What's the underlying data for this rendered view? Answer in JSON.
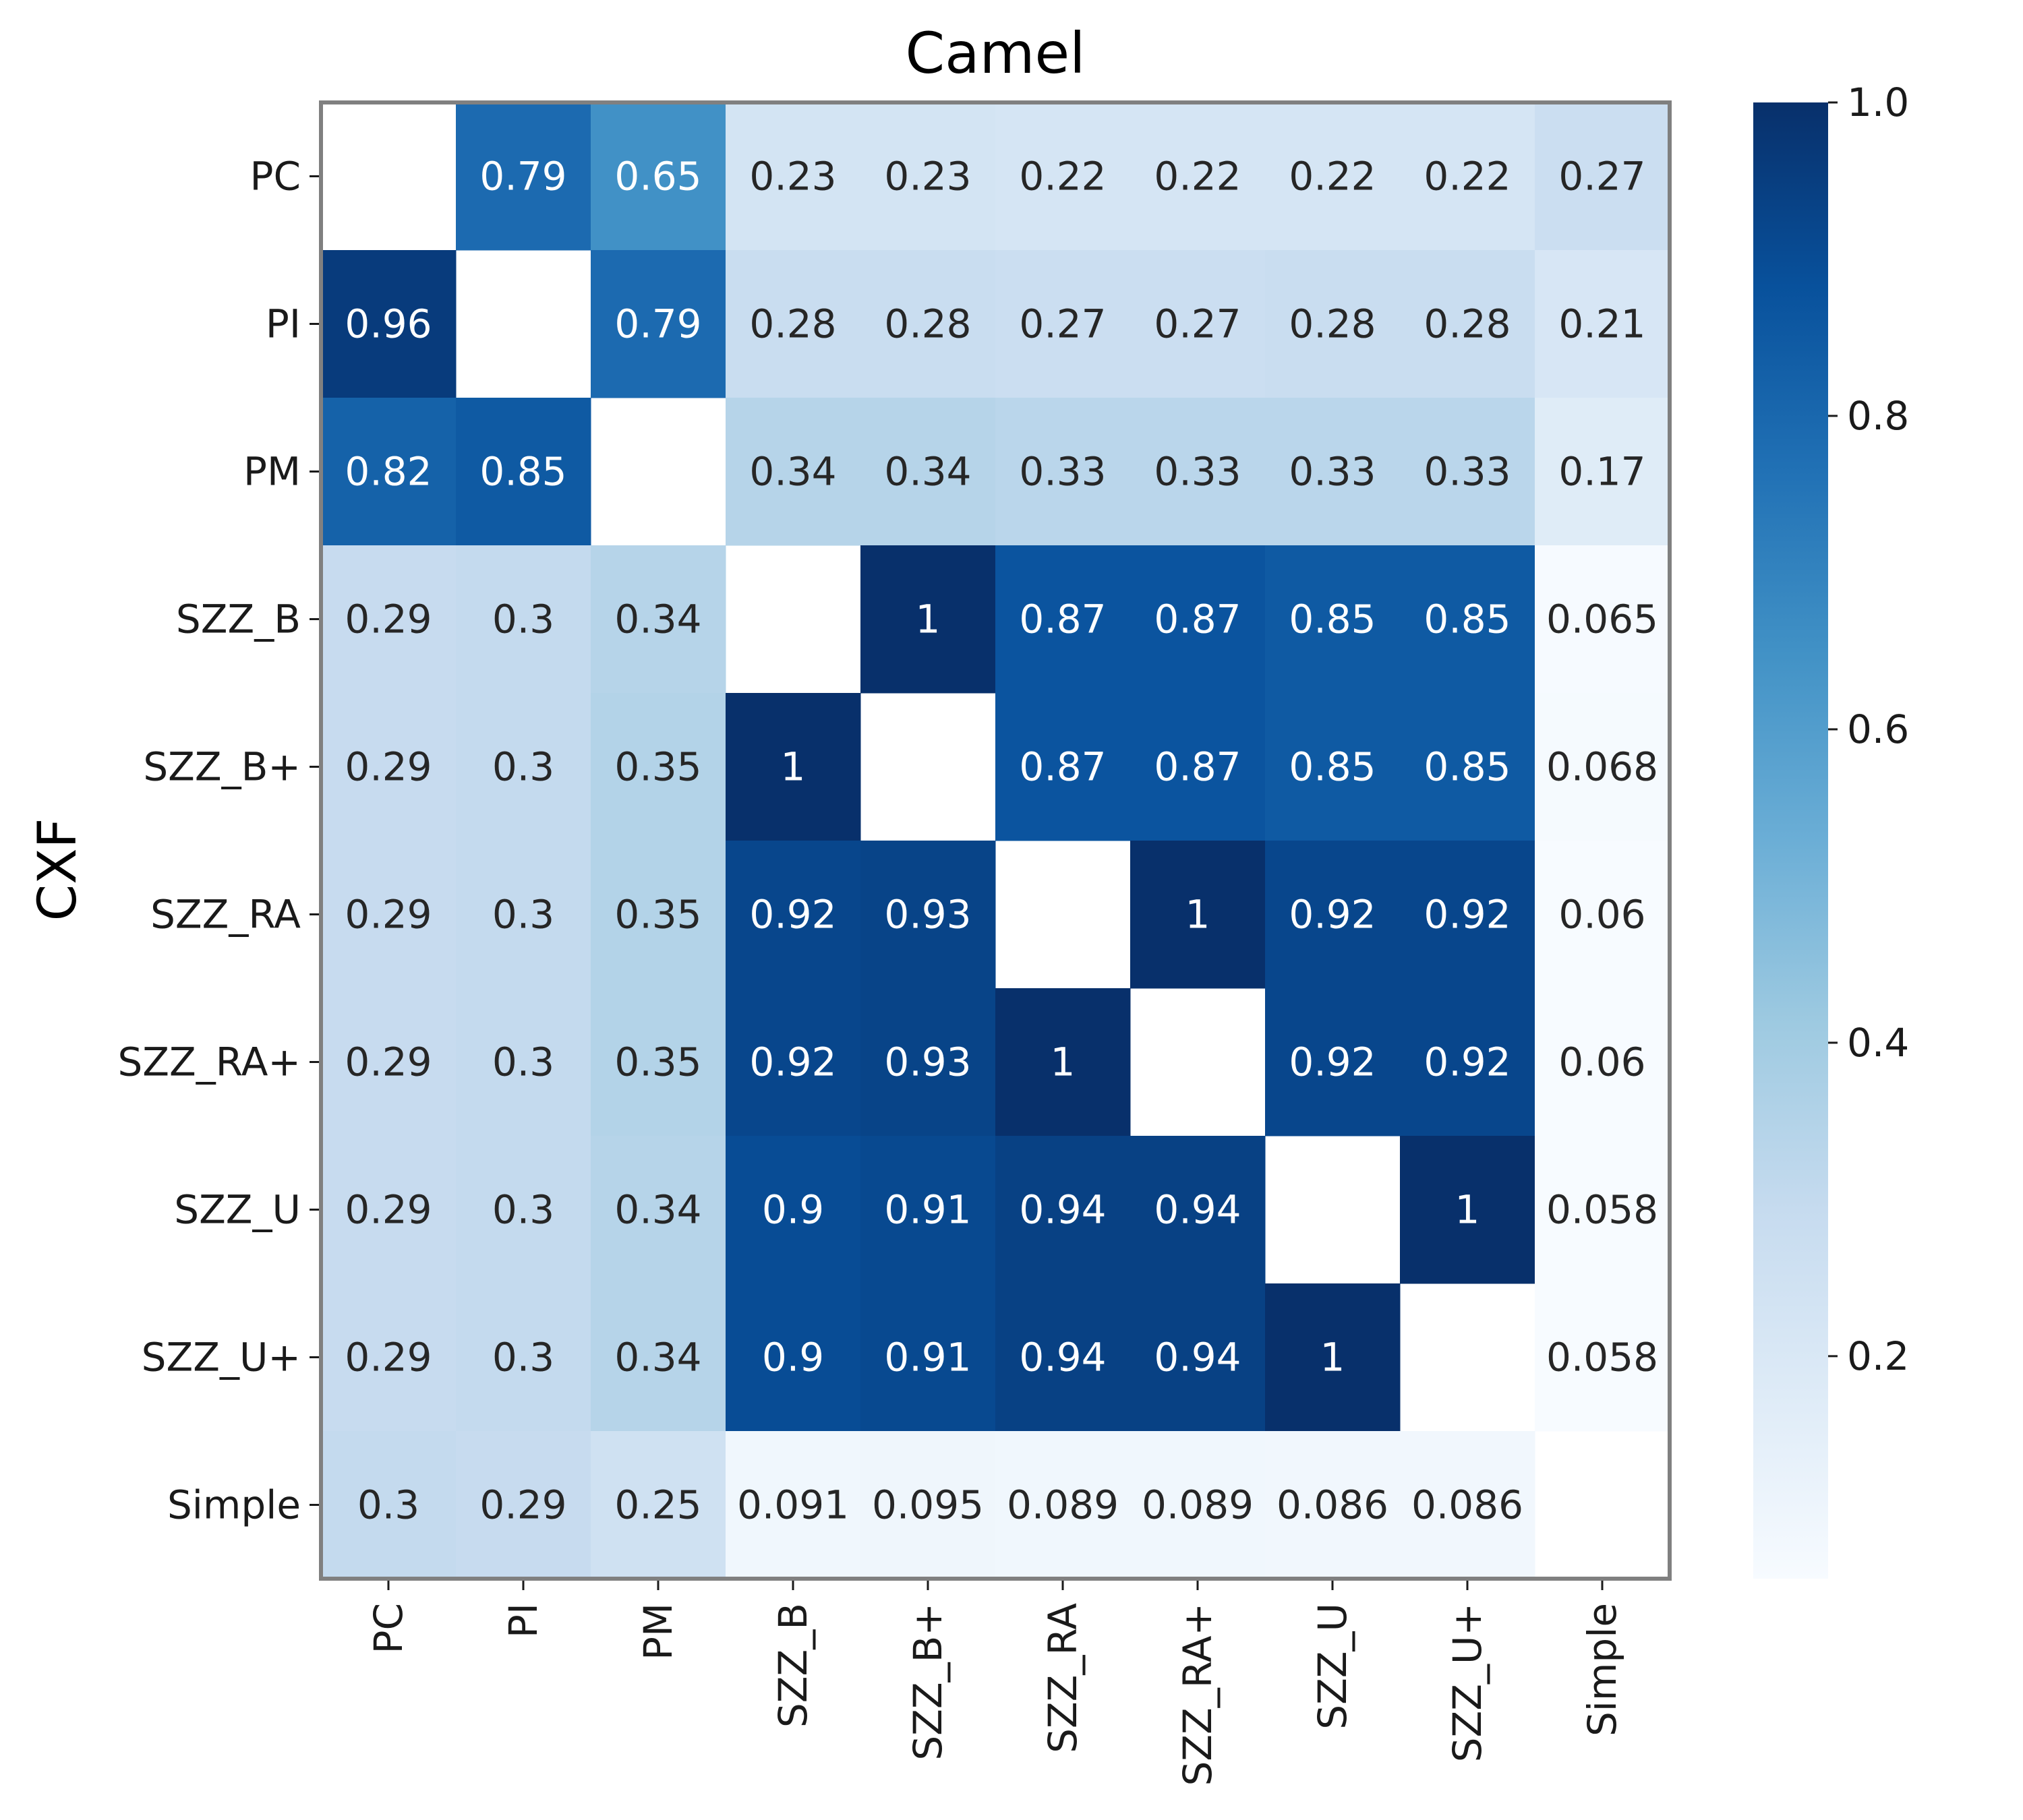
{
  "chart_data": {
    "type": "heatmap",
    "title": "Camel",
    "ylabel": "CXF",
    "xlabel": "",
    "rows": [
      "PC",
      "PI",
      "PM",
      "SZZ_B",
      "SZZ_B+",
      "SZZ_RA",
      "SZZ_RA+",
      "SZZ_U",
      "SZZ_U+",
      "Simple"
    ],
    "columns": [
      "PC",
      "PI",
      "PM",
      "SZZ_B",
      "SZZ_B+",
      "SZZ_RA",
      "SZZ_RA+",
      "SZZ_U",
      "SZZ_U+",
      "Simple"
    ],
    "values": [
      [
        null,
        0.79,
        0.65,
        0.23,
        0.23,
        0.22,
        0.22,
        0.22,
        0.22,
        0.27
      ],
      [
        0.96,
        null,
        0.79,
        0.28,
        0.28,
        0.27,
        0.27,
        0.28,
        0.28,
        0.21
      ],
      [
        0.82,
        0.85,
        null,
        0.34,
        0.34,
        0.33,
        0.33,
        0.33,
        0.33,
        0.17
      ],
      [
        0.29,
        0.3,
        0.34,
        null,
        1,
        0.87,
        0.87,
        0.85,
        0.85,
        0.065
      ],
      [
        0.29,
        0.3,
        0.35,
        1,
        null,
        0.87,
        0.87,
        0.85,
        0.85,
        0.068
      ],
      [
        0.29,
        0.3,
        0.35,
        0.92,
        0.93,
        null,
        1,
        0.92,
        0.92,
        0.06
      ],
      [
        0.29,
        0.3,
        0.35,
        0.92,
        0.93,
        1,
        null,
        0.92,
        0.92,
        0.06
      ],
      [
        0.29,
        0.3,
        0.34,
        0.9,
        0.91,
        0.94,
        0.94,
        null,
        1,
        0.058
      ],
      [
        0.29,
        0.3,
        0.34,
        0.9,
        0.91,
        0.94,
        0.94,
        1,
        null,
        0.058
      ],
      [
        0.3,
        0.29,
        0.25,
        0.091,
        0.095,
        0.089,
        0.089,
        0.086,
        0.086,
        null
      ]
    ],
    "colorbar": {
      "range": [
        0.058,
        1.0
      ],
      "ticks": [
        0.2,
        0.4,
        0.6,
        0.8,
        1.0
      ],
      "tick_labels": [
        "0.2",
        "0.4",
        "0.6",
        "0.8",
        "1.0"
      ],
      "colormap": "Blues",
      "colors": [
        "#f7fbff",
        "#deebf7",
        "#c6dbef",
        "#9ecae1",
        "#6baed6",
        "#4292c6",
        "#2171b5",
        "#08519c",
        "#08306b"
      ]
    },
    "grid": false,
    "border_color": "#808080"
  }
}
